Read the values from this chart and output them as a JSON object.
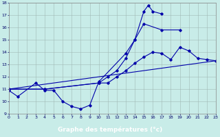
{
  "background_color": "#c8ece8",
  "grid_color": "#a0b8b4",
  "line_color": "#0000aa",
  "xlabel": "Graphe des températures (°c)",
  "xlabel_bg": "#2244aa",
  "xlabel_fg": "#ffffff",
  "xmin": 0,
  "xmax": 23,
  "ymin": 9,
  "ymax": 18,
  "line1": [
    [
      0,
      10.9
    ],
    [
      1,
      10.4
    ],
    [
      3,
      11.5
    ],
    [
      4,
      10.9
    ],
    [
      5,
      10.9
    ],
    [
      6,
      10.0
    ],
    [
      7,
      9.6
    ],
    [
      8,
      9.4
    ],
    [
      9,
      9.7
    ],
    [
      10,
      11.6
    ],
    [
      13,
      13.9
    ],
    [
      14,
      15.0
    ],
    [
      15,
      17.3
    ],
    [
      15.5,
      17.8
    ],
    [
      16,
      17.3
    ],
    [
      17,
      17.1
    ]
  ],
  "line2": [
    [
      0,
      11.0
    ],
    [
      4,
      11.0
    ],
    [
      10,
      11.5
    ],
    [
      11,
      12.0
    ],
    [
      12,
      12.5
    ],
    [
      13,
      13.5
    ],
    [
      14,
      15.0
    ],
    [
      15,
      16.3
    ],
    [
      17,
      15.8
    ],
    [
      19,
      15.8
    ]
  ],
  "line3": [
    [
      0,
      11.0
    ],
    [
      4,
      11.0
    ],
    [
      10,
      11.5
    ],
    [
      11,
      11.5
    ],
    [
      12,
      12.0
    ],
    [
      13,
      12.5
    ],
    [
      14,
      13.1
    ],
    [
      15,
      13.6
    ],
    [
      16,
      14.0
    ],
    [
      17,
      13.9
    ],
    [
      18,
      13.4
    ],
    [
      19,
      14.4
    ],
    [
      20,
      14.1
    ],
    [
      21,
      13.5
    ],
    [
      22,
      13.4
    ],
    [
      23,
      13.3
    ]
  ],
  "line4": [
    [
      0,
      11.0
    ],
    [
      23,
      13.3
    ]
  ]
}
